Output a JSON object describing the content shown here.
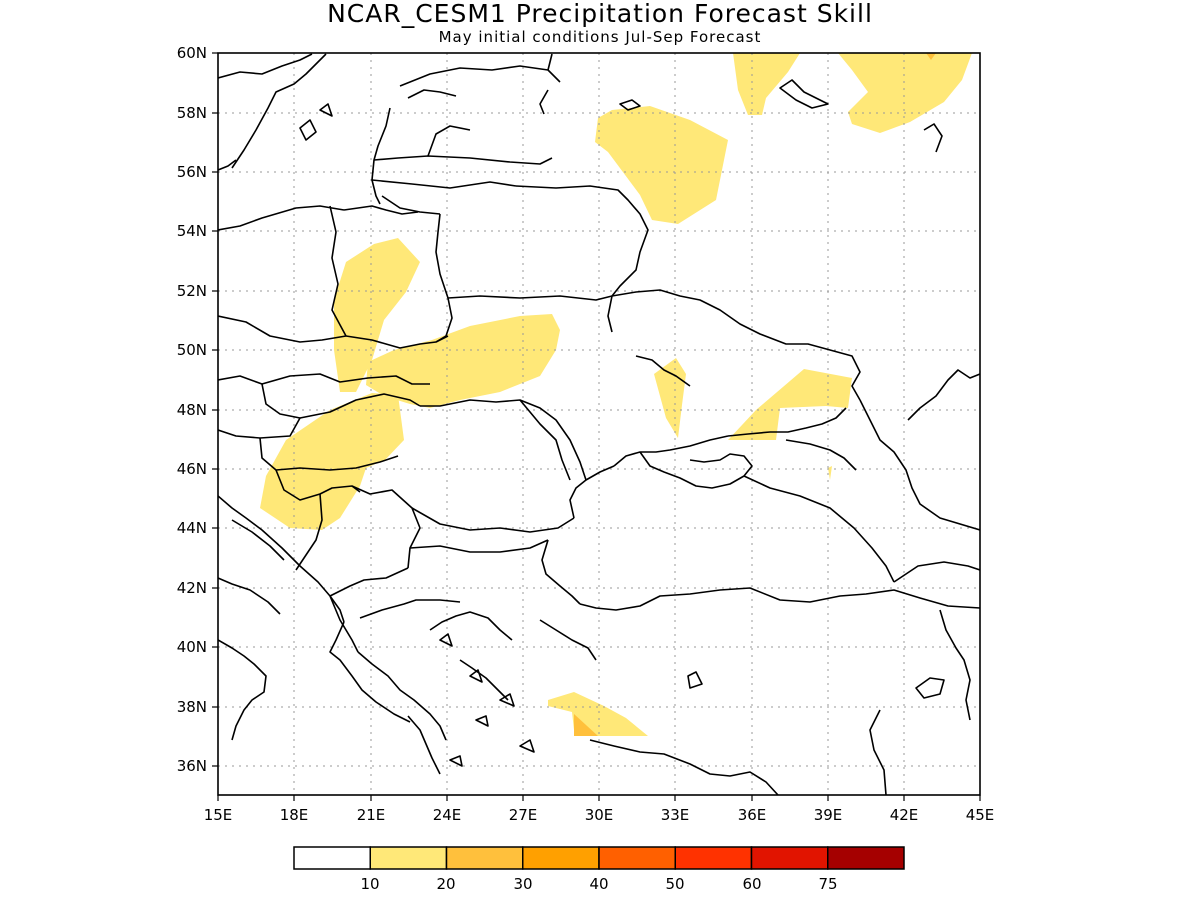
{
  "header": {
    "title": "NCAR_CESM1 Precipitation Forecast Skill",
    "subtitle": "May initial conditions  Jul-Sep Forecast"
  },
  "map": {
    "lon_range": [
      15,
      45
    ],
    "lat_range": [
      35,
      60
    ],
    "lon_ticks": [
      "15E",
      "18E",
      "21E",
      "24E",
      "27E",
      "30E",
      "33E",
      "36E",
      "39E",
      "42E",
      "45E"
    ],
    "lat_ticks": [
      "36N",
      "38N",
      "40N",
      "42N",
      "44N",
      "46N",
      "48N",
      "50N",
      "52N",
      "54N",
      "56N",
      "58N",
      "60N"
    ],
    "gridlines": "dotted",
    "coastline_color": "#000000"
  },
  "colorbar": {
    "colors": [
      "#ffffff",
      "#ffe878",
      "#ffc03c",
      "#ffa000",
      "#ff6000",
      "#ff3200",
      "#e11400",
      "#a50000"
    ],
    "labels": [
      "10",
      "20",
      "30",
      "40",
      "50",
      "60",
      "75"
    ]
  }
}
